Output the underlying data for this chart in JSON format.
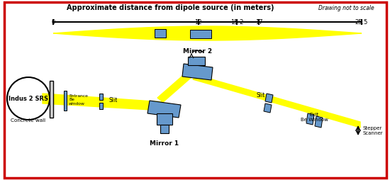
{
  "xlabel": "Approximate distance from dipole source (in meters)",
  "note": "Drawing not to scale",
  "ruler_ticks": [
    0,
    12,
    15.2,
    17,
    25.5
  ],
  "ruler_labels": [
    "0",
    "12",
    "15.2",
    "17",
    "25.5"
  ],
  "beam_color": "#FFFF00",
  "component_color": "#6699CC",
  "border_color": "#CC0000",
  "bg_color": "#FFFFFF",
  "labels": {
    "indus": "Indus 2 SRS",
    "concrete": "Concrete wall",
    "entrance": "Entrance\nBe\nwindow",
    "slit1": "Slit",
    "mirror1": "Mirror 1",
    "mirror2": "Mirror 2",
    "slit2": "Slit",
    "exit_be": "Exit\nBe Window",
    "stepper": "Stepper\nScanner"
  }
}
